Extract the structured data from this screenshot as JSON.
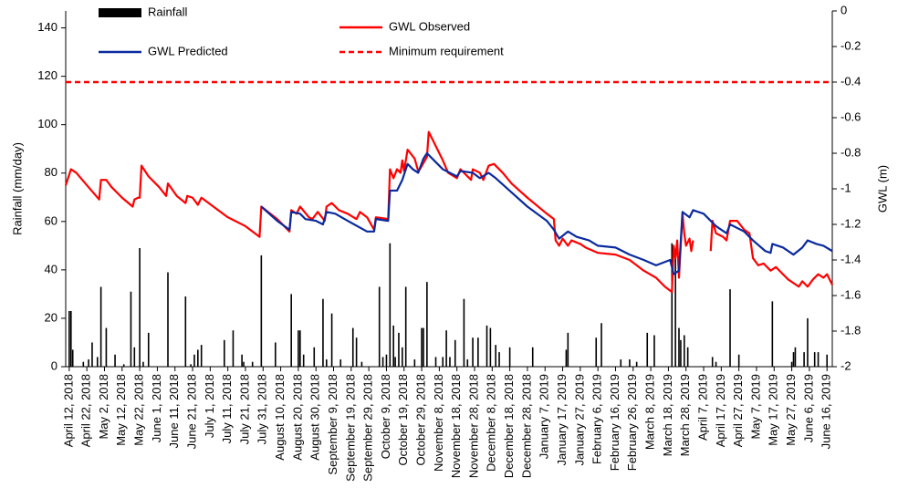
{
  "chart_data": {
    "type": "combo",
    "y_label": "Rainfall (mm/day)",
    "y2_label": "GWL (m)",
    "xlim": [
      "April 10, 2018",
      "June 19, 2019"
    ],
    "xticks": [
      "April 12, 2018",
      "April 22, 2018",
      "May 2, 2018",
      "May 12, 2018",
      "May 22, 2018",
      "June 1, 2018",
      "June 11, 2018",
      "June 21, 2018",
      "July 1, 2018",
      "July 11, 2018",
      "July 21, 2018",
      "July 31, 2018",
      "August 10, 2018",
      "August 20, 2018",
      "August 30, 2018",
      "September 9, 2018",
      "September 19, 2018",
      "September 29, 2018",
      "October 9, 2018",
      "October 19, 2018",
      "October 29, 2018",
      "November 8, 2018",
      "November 18, 2018",
      "November 28, 2018",
      "December 8, 2018",
      "December 18, 2018",
      "December 28, 2018",
      "January 7, 2019",
      "January 17, 2019",
      "January 27, 2019",
      "February 6, 2019",
      "February 16, 2019",
      "February 26, 2019",
      "March 8, 2019",
      "March 18, 2019",
      "March 28, 2019",
      "April 7, 2019",
      "April 17, 2019",
      "April 27, 2019",
      "May 7, 2019",
      "May 17, 2019",
      "May 27, 2019",
      "June 6, 2019",
      "June 16, 2019"
    ],
    "ylim": [
      0,
      147
    ],
    "yticks": [
      0,
      20,
      40,
      60,
      80,
      100,
      120,
      140
    ],
    "y2lim": [
      -2,
      0
    ],
    "y2ticks": [
      0,
      -0.2,
      -0.4,
      -0.6,
      -0.8,
      -1,
      -1.2,
      -1.4,
      -1.6,
      -1.8,
      -2
    ],
    "series": [
      {
        "name": "Rainfall",
        "kind": "bar",
        "color": "#000000",
        "x": [
          "April 12, 2018",
          "April 13, 2018",
          "April 14, 2018",
          "April 20, 2018",
          "April 23, 2018",
          "April 25, 2018",
          "April 28, 2018",
          "April 30, 2018",
          "May 3, 2018",
          "May 8, 2018",
          "May 13, 2018",
          "May 17, 2018",
          "May 19, 2018",
          "May 22, 2018",
          "May 24, 2018",
          "May 27, 2018",
          "June 7, 2018",
          "June 17, 2018",
          "June 20, 2018",
          "June 22, 2018",
          "June 24, 2018",
          "June 26, 2018",
          "July 9, 2018",
          "July 14, 2018",
          "July 19, 2018",
          "July 20, 2018",
          "July 25, 2018",
          "July 30, 2018",
          "August 7, 2018",
          "August 16, 2018",
          "August 20, 2018",
          "August 21, 2018",
          "August 23, 2018",
          "August 29, 2018",
          "September 3, 2018",
          "September 5, 2018",
          "September 8, 2018",
          "September 13, 2018",
          "September 20, 2018",
          "September 22, 2018",
          "September 25, 2018",
          "October 5, 2018",
          "October 7, 2018",
          "October 9, 2018",
          "October 11, 2018",
          "October 13, 2018",
          "October 14, 2018",
          "October 16, 2018",
          "October 18, 2018",
          "October 20, 2018",
          "October 25, 2018",
          "October 29, 2018",
          "October 30, 2018",
          "November 1, 2018",
          "November 6, 2018",
          "November 10, 2018",
          "November 12, 2018",
          "November 14, 2018",
          "November 17, 2018",
          "November 22, 2018",
          "November 24, 2018",
          "November 27, 2018",
          "November 30, 2018",
          "December 5, 2018",
          "December 7, 2018",
          "December 10, 2018",
          "December 12, 2018",
          "December 18, 2018",
          "December 31, 2018",
          "January 19, 2019",
          "January 20, 2019",
          "February 5, 2019",
          "February 8, 2019",
          "February 19, 2019",
          "February 24, 2019",
          "February 28, 2019",
          "March 6, 2019",
          "March 10, 2019",
          "March 20, 2019",
          "March 22, 2019",
          "March 24, 2019",
          "March 25, 2019",
          "March 27, 2019",
          "March 29, 2019",
          "April 12, 2019",
          "April 14, 2019",
          "April 22, 2019",
          "April 27, 2019",
          "May 16, 2019",
          "May 27, 2019",
          "May 28, 2019",
          "May 29, 2019",
          "June 3, 2019",
          "June 5, 2019",
          "June 9, 2019",
          "June 11, 2019",
          "June 16, 2019"
        ],
        "values": [
          23,
          23,
          7,
          2,
          3,
          10,
          4,
          33,
          16,
          5,
          1,
          31,
          8,
          49,
          2,
          14,
          39,
          29,
          1,
          5,
          7,
          9,
          11,
          15,
          5,
          2,
          2,
          46,
          10,
          30,
          15,
          15,
          5,
          8,
          28,
          3,
          22,
          3,
          16,
          12,
          2,
          33,
          4,
          5,
          51,
          17,
          4,
          14,
          8,
          33,
          3,
          16,
          16,
          35,
          4,
          4,
          15,
          4,
          11,
          28,
          3,
          12,
          12,
          17,
          16,
          9,
          6,
          8,
          8,
          7,
          14,
          12,
          18,
          3,
          3,
          2,
          14,
          13,
          51,
          45,
          16,
          11,
          13,
          8,
          4,
          2,
          32,
          5,
          27,
          2,
          6,
          8,
          6,
          20,
          6,
          6,
          5
        ]
      },
      {
        "name": "GWL Observed",
        "kind": "line",
        "axis": "y2",
        "color": "#ff0000",
        "x": [
          "April 10, 2018",
          "April 13, 2018",
          "April 16, 2018",
          "April 22, 2018",
          "April 29, 2018",
          "April 30, 2018",
          "May 3, 2018",
          "May 6, 2018",
          "May 12, 2018",
          "May 18, 2018",
          "May 19, 2018",
          "May 21, 2018",
          "May 22, 2018",
          "May 23, 2018",
          "May 27, 2018",
          "June 2, 2018",
          "June 6, 2018",
          "June 7, 2018",
          "June 12, 2018",
          "June 17, 2018",
          "June 18, 2018",
          "June 21, 2018",
          "June 24, 2018",
          "June 26, 2018",
          "July 11, 2018",
          "July 21, 2018",
          "July 29, 2018",
          "July 30, 2018",
          "August 8, 2018",
          "August 15, 2018",
          "August 16, 2018",
          "August 19, 2018",
          "August 21, 2018",
          "August 26, 2018",
          "August 28, 2018",
          "August 31, 2018",
          "September 4, 2018",
          "September 5, 2018",
          "September 8, 2018",
          "September 12, 2018",
          "September 17, 2018",
          "September 22, 2018",
          "September 24, 2018",
          "September 28, 2018",
          "October 2, 2018",
          "October 3, 2018",
          "October 10, 2018",
          "October 11, 2018",
          "October 13, 2018",
          "October 15, 2018",
          "October 17, 2018",
          "October 18, 2018",
          "October 19, 2018",
          "October 21, 2018",
          "October 25, 2018",
          "October 27, 2018",
          "October 28, 2018",
          "November 1, 2018",
          "November 2, 2018",
          "November 5, 2018",
          "November 10, 2018",
          "November 13, 2018",
          "November 18, 2018",
          "November 20, 2018",
          "November 26, 2018",
          "November 27, 2018",
          "December 1, 2018",
          "December 3, 2018",
          "December 6, 2018",
          "December 9, 2018",
          "December 14, 2018",
          "December 19, 2018",
          "December 28, 2018",
          "January 8, 2019",
          "January 12, 2019",
          "January 13, 2019",
          "January 15, 2019",
          "January 17, 2019",
          "January 20, 2019",
          "January 22, 2019",
          "January 27, 2019",
          "January 30, 2019",
          "February 6, 2019",
          "February 16, 2019",
          "February 24, 2019",
          "March 4, 2019",
          "March 11, 2019",
          "March 16, 2019",
          "March 20, 2019",
          "March 21, 2019",
          "March 22, 2019",
          "March 23, 2019",
          "March 24, 2019",
          "March 26, 2019",
          "March 27, 2019",
          "March 28, 2019",
          "March 30, 2019",
          "March 31, 2019",
          "April 1, 2019",
          "April 2, 2019",
          "April 11, 2019",
          "April 12, 2019",
          "April 14, 2019",
          "April 18, 2019",
          "April 20, 2019",
          "April 22, 2019",
          "April 26, 2019",
          "April 30, 2019",
          "May 3, 2019",
          "May 5, 2019",
          "May 8, 2019",
          "May 11, 2019",
          "May 15, 2019",
          "May 18, 2019",
          "May 22, 2019",
          "May 25, 2019",
          "May 31, 2019",
          "June 2, 2019",
          "June 5, 2019",
          "June 8, 2019",
          "June 11, 2019",
          "June 14, 2019",
          "June 16, 2019",
          "June 19, 2019"
        ],
        "values": [
          -0.98,
          -0.89,
          -0.91,
          -0.98,
          -1.06,
          -0.95,
          -0.95,
          -0.99,
          -1.05,
          -1.1,
          -1.06,
          -1.05,
          -1.05,
          -0.87,
          -0.93,
          -0.99,
          -1.04,
          -0.97,
          -1.04,
          -1.08,
          -1.04,
          -1.05,
          -1.09,
          -1.05,
          -1.16,
          -1.21,
          -1.27,
          -1.1,
          -1.17,
          -1.24,
          -1.12,
          -1.14,
          -1.1,
          -1.16,
          -1.17,
          -1.13,
          -1.18,
          -1.1,
          -1.08,
          -1.12,
          -1.14,
          -1.17,
          -1.13,
          -1.16,
          -1.23,
          -1.16,
          -1.17,
          -0.89,
          -0.94,
          -0.89,
          -0.91,
          -0.84,
          -0.9,
          -0.78,
          -0.83,
          -0.9,
          -0.89,
          -0.82,
          -0.68,
          -0.74,
          -0.84,
          -0.91,
          -0.94,
          -0.89,
          -0.95,
          -0.89,
          -0.91,
          -0.95,
          -0.87,
          -0.86,
          -0.91,
          -0.97,
          -1.05,
          -1.14,
          -1.17,
          -1.29,
          -1.32,
          -1.28,
          -1.32,
          -1.29,
          -1.31,
          -1.33,
          -1.36,
          -1.37,
          -1.4,
          -1.46,
          -1.5,
          -1.55,
          -1.58,
          -1.32,
          -1.39,
          -1.29,
          -1.5,
          -1.14,
          -1.25,
          -1.32,
          -1.28,
          -1.35,
          -1.29,
          null,
          -1.35,
          -1.18,
          -1.25,
          -1.27,
          -1.29,
          -1.18,
          -1.18,
          -1.23,
          -1.25,
          -1.39,
          -1.43,
          -1.42,
          -1.46,
          -1.44,
          -1.48,
          -1.51,
          -1.55,
          -1.52,
          -1.55,
          -1.51,
          -1.48,
          -1.5,
          -1.48,
          -1.54
        ]
      },
      {
        "name": "GWL Predicted",
        "kind": "line",
        "axis": "y2",
        "color": "#0a2a9e",
        "x": [
          "July 30, 2018",
          "August 8, 2018",
          "August 15, 2018",
          "August 16, 2018",
          "August 21, 2018",
          "August 24, 2018",
          "August 30, 2018",
          "September 3, 2018",
          "September 5, 2018",
          "September 10, 2018",
          "September 17, 2018",
          "September 28, 2018",
          "October 2, 2018",
          "October 3, 2018",
          "October 10, 2018",
          "October 11, 2018",
          "October 15, 2018",
          "October 18, 2018",
          "October 21, 2018",
          "October 24, 2018",
          "October 27, 2018",
          "October 30, 2018",
          "November 1, 2018",
          "November 5, 2018",
          "November 10, 2018",
          "November 18, 2018",
          "November 20, 2018",
          "November 27, 2018",
          "December 1, 2018",
          "December 6, 2018",
          "December 10, 2018",
          "December 19, 2018",
          "December 28, 2018",
          "January 8, 2019",
          "January 12, 2019",
          "January 15, 2019",
          "January 20, 2019",
          "January 25, 2019",
          "February 1, 2019",
          "February 6, 2019",
          "February 16, 2019",
          "February 24, 2019",
          "March 4, 2019",
          "March 11, 2019",
          "March 19, 2019",
          "March 21, 2019",
          "March 24, 2019",
          "March 26, 2019",
          "March 30, 2019",
          "April 1, 2019",
          "April 7, 2019",
          "April 14, 2019",
          "April 20, 2019",
          "April 22, 2019",
          "April 30, 2019",
          "May 5, 2019",
          "May 12, 2019",
          "May 15, 2019",
          "May 16, 2019",
          "May 22, 2019",
          "May 28, 2019",
          "June 2, 2019",
          "June 5, 2019",
          "June 10, 2019",
          "June 14, 2019",
          "June 19, 2019"
        ],
        "values": [
          -1.1,
          -1.18,
          -1.23,
          -1.13,
          -1.14,
          -1.17,
          -1.18,
          -1.2,
          -1.13,
          -1.14,
          -1.18,
          -1.24,
          -1.24,
          -1.17,
          -1.18,
          -1.01,
          -1.01,
          -0.95,
          -0.86,
          -0.89,
          -0.91,
          -0.83,
          -0.8,
          -0.84,
          -0.89,
          -0.93,
          -0.9,
          -0.91,
          -0.94,
          -0.91,
          -0.94,
          -1.02,
          -1.1,
          -1.18,
          -1.23,
          -1.28,
          -1.24,
          -1.27,
          -1.29,
          -1.32,
          -1.33,
          -1.37,
          -1.4,
          -1.43,
          -1.4,
          -1.48,
          -1.46,
          -1.13,
          -1.16,
          -1.12,
          -1.14,
          -1.21,
          -1.25,
          -1.2,
          -1.24,
          -1.29,
          -1.35,
          -1.36,
          -1.31,
          -1.33,
          -1.37,
          -1.33,
          -1.29,
          -1.31,
          -1.32,
          -1.35
        ]
      },
      {
        "name": "Minimum requirement",
        "kind": "line",
        "axis": "y2",
        "dashed": true,
        "color": "#ff0000",
        "x": [
          "April 10, 2018",
          "June 19, 2019"
        ],
        "values": [
          -0.4,
          -0.4
        ]
      }
    ]
  }
}
